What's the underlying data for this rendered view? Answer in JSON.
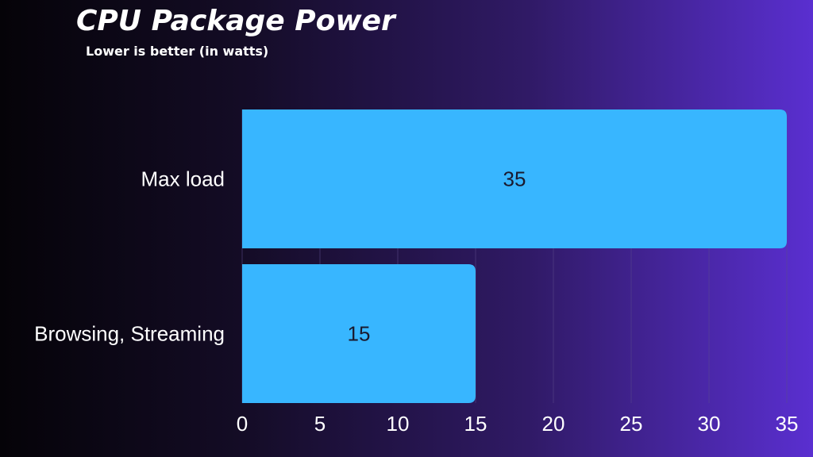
{
  "chart_data": {
    "type": "bar",
    "orientation": "horizontal",
    "title": "CPU Package Power",
    "subtitle": "Lower is better (in watts)",
    "categories": [
      "Max load",
      "Browsing, Streaming"
    ],
    "values": [
      35,
      15
    ],
    "data_labels": [
      "35",
      "15"
    ],
    "xlim": [
      0,
      35
    ],
    "xticks": [
      0,
      5,
      10,
      15,
      20,
      25,
      30,
      35
    ],
    "xtick_labels": [
      "0",
      "5",
      "10",
      "15",
      "20",
      "25",
      "30",
      "35"
    ],
    "grid": "vertical",
    "legend": "none",
    "colors": {
      "bar": "#38b6ff",
      "text": "#ffffff",
      "data_label": "#1a1a2e",
      "grid": "#5a4a8a"
    }
  }
}
